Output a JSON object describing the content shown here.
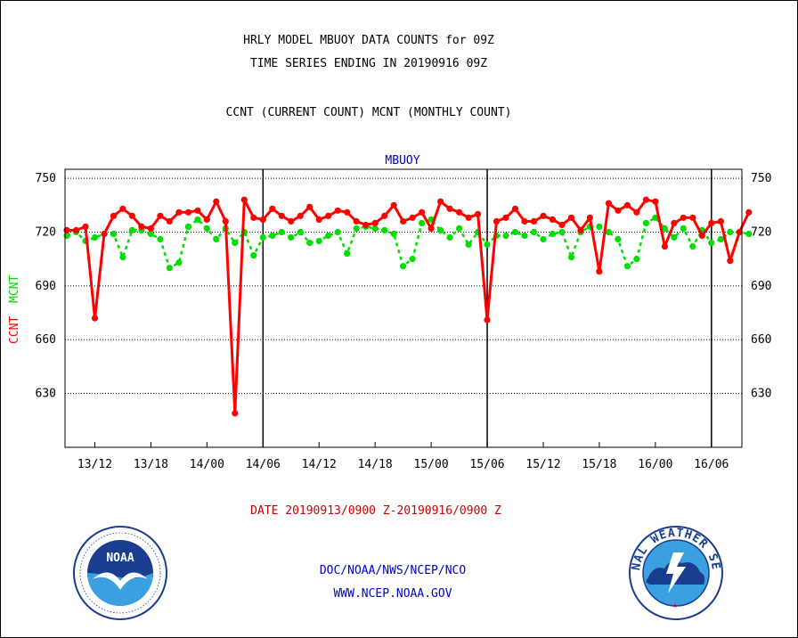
{
  "header": {
    "line1": "HRLY MODEL MBUOY DATA COUNTS for 09Z",
    "line2": "TIME SERIES ENDING IN 20190916 09Z",
    "line3": "CCNT (CURRENT COUNT) MCNT (MONTHLY COUNT)"
  },
  "footer": {
    "date_range": "DATE 20190913/0900 Z-20190916/0900 Z",
    "org": "DOC/NOAA/NWS/NCEP/NCO",
    "url": "WWW.NCEP.NOAA.GOV"
  },
  "logos": {
    "noaa_text": "NOAA",
    "nws_text": "NATIONAL WEATHER SERVICE"
  },
  "colors": {
    "ccnt": "#ff0000",
    "mcnt": "#00dd00",
    "title": "#0000cc",
    "footer": "#0000cc",
    "date": "#cc0000"
  },
  "chart_data": {
    "type": "line",
    "title": "MBUOY",
    "ylabel_ccnt": "CCNT",
    "ylabel_mcnt": "MCNT",
    "ylim": [
      600,
      755
    ],
    "yticks": [
      630,
      660,
      690,
      720,
      750
    ],
    "xticks": [
      "13/12",
      "13/18",
      "14/00",
      "14/06",
      "14/12",
      "14/18",
      "15/00",
      "15/06",
      "15/12",
      "15/18",
      "16/00",
      "16/06"
    ],
    "day_boundaries": [
      "14/06",
      "15/06",
      "16/06"
    ],
    "grid": true,
    "series": [
      {
        "name": "CCNT",
        "color": "#ff0000",
        "values": [
          721,
          721,
          723,
          672,
          719,
          729,
          733,
          729,
          723,
          722,
          729,
          726,
          731,
          731,
          732,
          727,
          737,
          726,
          619,
          738,
          728,
          727,
          733,
          729,
          726,
          729,
          734,
          727,
          729,
          732,
          731,
          726,
          724,
          725,
          729,
          735,
          726,
          728,
          731,
          722,
          737,
          733,
          731,
          728,
          730,
          671,
          726,
          728,
          733,
          726,
          726,
          729,
          727,
          724,
          728,
          721,
          728,
          698,
          736,
          732,
          735,
          731,
          738,
          737,
          712,
          725,
          728,
          728,
          718,
          725,
          726,
          704,
          720,
          731
        ]
      },
      {
        "name": "MCNT",
        "color": "#00dd00",
        "values": [
          718,
          720,
          715,
          717,
          719,
          719,
          706,
          721,
          721,
          719,
          716,
          700,
          703,
          723,
          727,
          722,
          716,
          722,
          714,
          720,
          707,
          717,
          718,
          720,
          717,
          720,
          714,
          715,
          718,
          720,
          708,
          722,
          723,
          722,
          721,
          719,
          701,
          705,
          725,
          727,
          721,
          717,
          722,
          713,
          720,
          713,
          718,
          718,
          720,
          718,
          720,
          716,
          719,
          720,
          706,
          720,
          723,
          723,
          720,
          716,
          701,
          705,
          725,
          728,
          722,
          717,
          722,
          712,
          721,
          714,
          716,
          720,
          720,
          719
        ]
      }
    ]
  }
}
